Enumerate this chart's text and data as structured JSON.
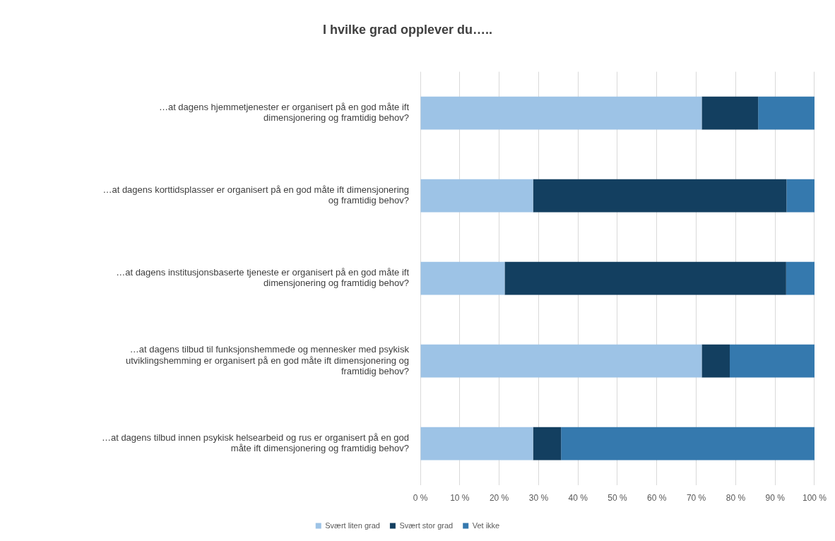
{
  "chart_data": {
    "type": "bar",
    "orientation": "horizontal",
    "stacked": true,
    "title": "I hvilke grad opplever du…..",
    "categories": [
      "…at dagens hjemmetjenester er organisert på en god måte ift dimensjonering og framtidig behov?",
      "…at dagens korttidsplasser er organisert på en god måte ift dimensjonering og framtidig behov?",
      "…at dagens institusjonsbaserte tjeneste er organisert på en god måte ift dimensjonering og framtidig behov?",
      "…at dagens tilbud til funksjonshemmede og mennesker med psykisk utviklingshemming er organisert på en god måte ift dimensjonering og framtidig behov?",
      "…at dagens tilbud innen psykisk helsearbeid og rus er organisert på en god måte ift dimensjonering og framtidig behov?"
    ],
    "series": [
      {
        "name": "Svært liten grad",
        "color": "#9dc3e6",
        "values": [
          71.4,
          28.6,
          21.4,
          71.4,
          28.6
        ]
      },
      {
        "name": "Svært stor grad",
        "color": "#133f60",
        "values": [
          14.3,
          64.3,
          71.4,
          7.1,
          7.1
        ]
      },
      {
        "name": "Vet ikke",
        "color": "#3579ae",
        "values": [
          14.3,
          7.1,
          7.2,
          21.5,
          64.3
        ]
      }
    ],
    "xlim": [
      0,
      100
    ],
    "xticks": [
      {
        "value": 0,
        "label": "0 %"
      },
      {
        "value": 10,
        "label": "10 %"
      },
      {
        "value": 20,
        "label": "20 %"
      },
      {
        "value": 30,
        "label": "30 %"
      },
      {
        "value": 40,
        "label": "40 %"
      },
      {
        "value": 50,
        "label": "50 %"
      },
      {
        "value": 60,
        "label": "60 %"
      },
      {
        "value": 70,
        "label": "70 %"
      },
      {
        "value": 80,
        "label": "80 %"
      },
      {
        "value": 90,
        "label": "90 %"
      },
      {
        "value": 100,
        "label": "100 %"
      }
    ],
    "grid": "x",
    "legend": "bottom"
  }
}
